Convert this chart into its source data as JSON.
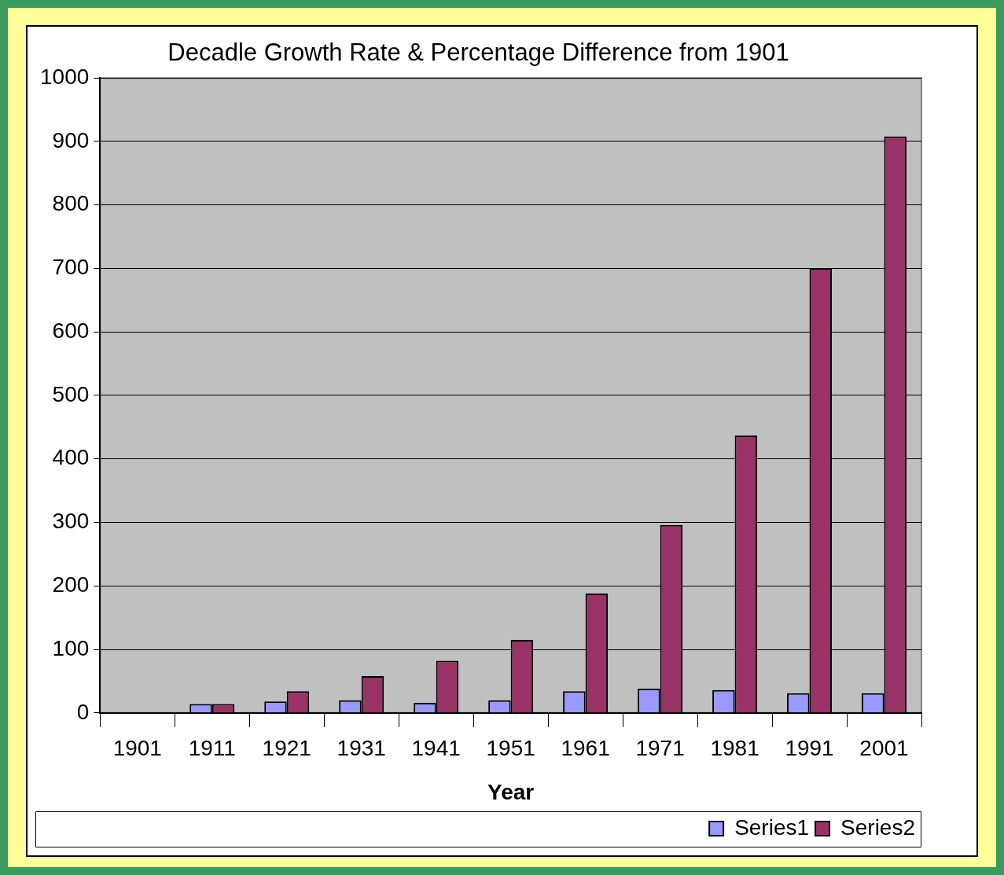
{
  "chart_data": {
    "type": "bar",
    "title": "Decadle Growth Rate & Percentage Difference from 1901",
    "xlabel": "Year",
    "categories": [
      "1901",
      "1911",
      "1921",
      "1931",
      "1941",
      "1951",
      "1961",
      "1971",
      "1981",
      "1991",
      "2001"
    ],
    "series": [
      {
        "name": "Series1",
        "color": "#9999ff",
        "values": [
          0,
          14,
          18,
          20,
          16,
          20,
          34,
          38,
          36,
          31,
          31
        ]
      },
      {
        "name": "Series2",
        "color": "#993366",
        "values": [
          0,
          14,
          34,
          58,
          82,
          115,
          188,
          296,
          437,
          700,
          908
        ]
      }
    ],
    "ylim": [
      0,
      1000
    ],
    "yticks": [
      0,
      100,
      200,
      300,
      400,
      500,
      600,
      700,
      800,
      900,
      1000
    ],
    "grid": "y",
    "legend": "bottom right"
  }
}
